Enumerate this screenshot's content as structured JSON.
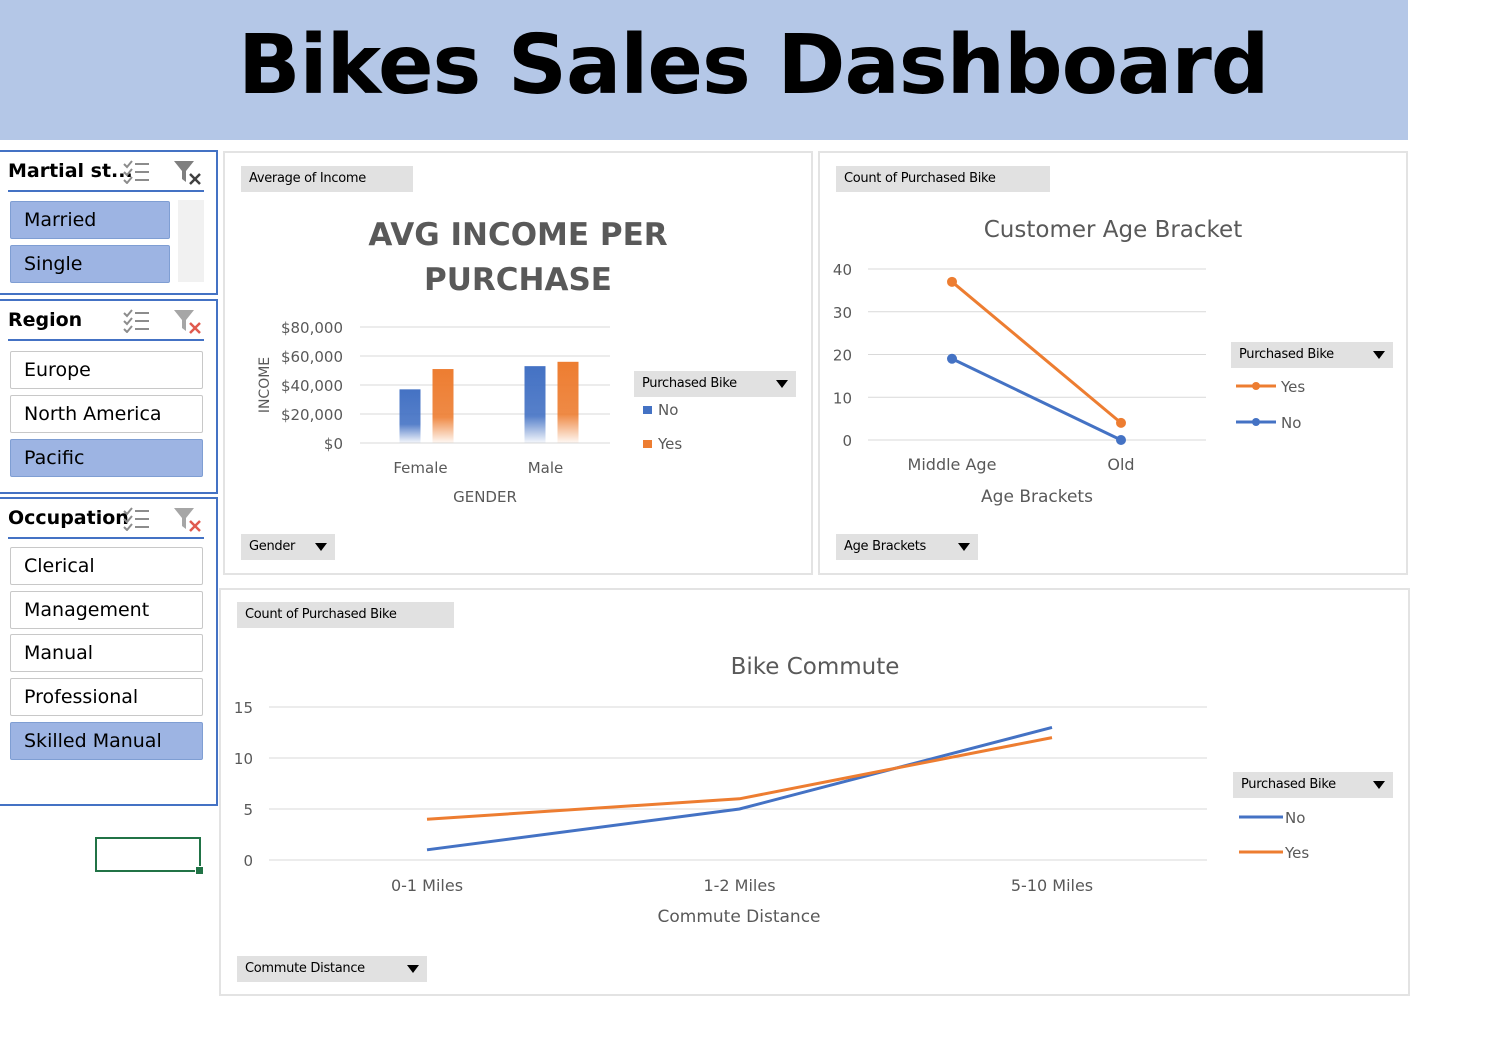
{
  "header": {
    "title": "Bikes Sales Dashboard"
  },
  "slicers": {
    "marital": {
      "title": "Martial st...",
      "items": [
        "Married",
        "Single"
      ]
    },
    "region": {
      "title": "Region",
      "items": [
        "Europe",
        "North America",
        "Pacific"
      ]
    },
    "occupation": {
      "title": "Occupation",
      "items": [
        "Clerical",
        "Management",
        "Manual",
        "Professional",
        "Skilled Manual"
      ]
    }
  },
  "colors": {
    "no": "#4472c4",
    "yes": "#ed7d31",
    "banner": "#b4c7e7",
    "slicer_selected": "#9db4e3"
  },
  "pivot_buttons": {
    "income_value": "Average of Income",
    "income_axis": "Gender",
    "income_legend": "Purchased Bike",
    "age_value": "Count of Purchased Bike",
    "age_axis": "Age Brackets",
    "age_legend": "Purchased Bike",
    "commute_value": "Count of Purchased Bike",
    "commute_axis": "Commute Distance",
    "commute_legend": "Purchased Bike"
  },
  "chart_data": [
    {
      "id": "income",
      "type": "bar",
      "title": "AVG INCOME PER PURCHASE",
      "title_lines": [
        "AVG INCOME PER",
        "PURCHASE"
      ],
      "xlabel": "GENDER",
      "ylabel": "INCOME",
      "categories": [
        "Female",
        "Male"
      ],
      "ylim": [
        0,
        80000
      ],
      "yticks": [
        "$0",
        "$20,000",
        "$40,000",
        "$60,000",
        "$80,000"
      ],
      "series": [
        {
          "name": "No",
          "values": [
            37000,
            53000
          ]
        },
        {
          "name": "Yes",
          "values": [
            51000,
            56000
          ]
        }
      ],
      "legend": "right",
      "grid": true
    },
    {
      "id": "age",
      "type": "line",
      "title": "Customer Age Bracket",
      "xlabel": "Age Brackets",
      "ylabel": "",
      "categories": [
        "Middle Age",
        "Old"
      ],
      "ylim": [
        0,
        40
      ],
      "yticks": [
        "0",
        "10",
        "20",
        "30",
        "40"
      ],
      "series": [
        {
          "name": "Yes",
          "values": [
            37,
            4
          ]
        },
        {
          "name": "No",
          "values": [
            19,
            0
          ]
        }
      ],
      "legend": "right",
      "grid": true
    },
    {
      "id": "commute",
      "type": "line",
      "title": "Bike Commute",
      "xlabel": "Commute Distance",
      "ylabel": "",
      "categories": [
        "0-1 Miles",
        "1-2 Miles",
        "5-10 Miles"
      ],
      "ylim": [
        0,
        15
      ],
      "yticks": [
        "0",
        "5",
        "10",
        "15"
      ],
      "series": [
        {
          "name": "No",
          "values": [
            1,
            5,
            13
          ]
        },
        {
          "name": "Yes",
          "values": [
            4,
            6,
            12
          ]
        }
      ],
      "legend": "right",
      "grid": true
    }
  ]
}
